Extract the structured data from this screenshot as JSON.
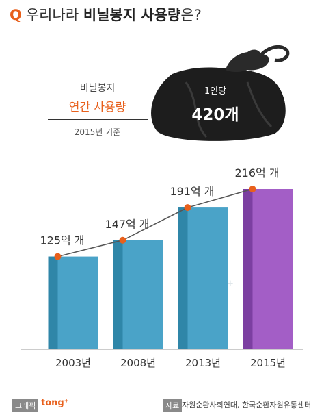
{
  "header": {
    "q_mark": "Q",
    "title_normal": "우리나라",
    "title_bold": "비닐봉지 사용량",
    "title_suffix": "은?"
  },
  "info": {
    "label1": "비닐봉지",
    "label2": "연간 사용량",
    "label3": "2015년 기준",
    "per_person_label": "1인당",
    "per_person_value": "420개"
  },
  "watermark": {
    "text": "tong",
    "sup": "+"
  },
  "footer": {
    "graphic_tag": "그래픽",
    "brand": "tong⁺",
    "source_tag": "자료",
    "source_text": "자원순환사회연대, 한국순환자원유통센터"
  },
  "colors": {
    "accent": "#e8601c",
    "bar_blue": "#4aa3c8",
    "bar_blue_dark": "#2f86a8",
    "bar_purple": "#a35ec6",
    "bar_purple_dark": "#7c3fa1",
    "line": "#555555"
  },
  "chart_data": {
    "type": "bar",
    "categories": [
      "2003년",
      "2008년",
      "2013년",
      "2015년"
    ],
    "values": [
      125,
      147,
      191,
      216
    ],
    "value_labels": [
      "125억 개",
      "147억 개",
      "191억 개",
      "216억 개"
    ],
    "ylim": [
      0,
      240
    ],
    "overlay_line": true,
    "highlight_index": 3
  }
}
